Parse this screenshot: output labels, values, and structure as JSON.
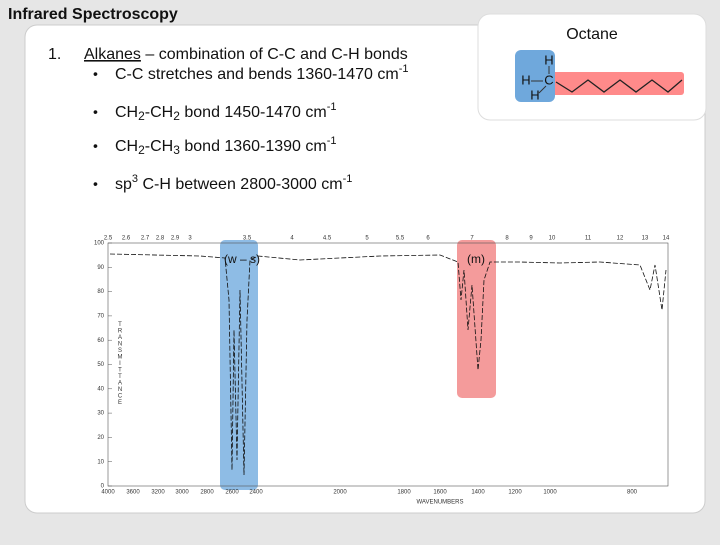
{
  "title": "Infrared Spectroscopy",
  "list": {
    "number": "1.",
    "heading": "Alkanes",
    "heading_rest": " – combination of C-C and C-H bonds",
    "bullets": [
      {
        "parts": [
          {
            "text": "C-C stretches and bends 1360-1470 cm"
          },
          {
            "text": "-1",
            "style": "sup"
          }
        ]
      },
      {
        "parts": [
          {
            "text": "CH"
          },
          {
            "text": "2",
            "style": "sub"
          },
          {
            "text": "-CH"
          },
          {
            "text": "2",
            "style": "sub"
          },
          {
            "text": " bond 1450-1470 cm"
          },
          {
            "text": "-1",
            "style": "sup"
          }
        ]
      },
      {
        "parts": [
          {
            "text": "CH"
          },
          {
            "text": "2",
            "style": "sub"
          },
          {
            "text": "-CH"
          },
          {
            "text": "3",
            "style": "sub"
          },
          {
            "text": " bond 1360-1390 cm"
          },
          {
            "text": "-1",
            "style": "sup"
          }
        ]
      },
      {
        "parts": [
          {
            "text": "sp"
          },
          {
            "text": "3",
            "style": "sup"
          },
          {
            "text": " C-H between 2800-3000 cm"
          },
          {
            "text": "-1",
            "style": "sup"
          }
        ]
      }
    ]
  },
  "molecule": {
    "title": "Octane",
    "atoms": [
      "H",
      "H",
      "C",
      "H"
    ]
  },
  "spectrum": {
    "top_ticks": [
      "2.5",
      "2.6",
      "2.7",
      "2.8",
      "2.9",
      "3",
      "3.5",
      "4",
      "4.5",
      "5",
      "5.5",
      "6",
      "7",
      "8",
      "9",
      "10",
      "11",
      "12",
      "13",
      "14"
    ],
    "y_ticks": [
      "100",
      "90",
      "80",
      "70",
      "60",
      "50",
      "40",
      "30",
      "20",
      "10",
      "0"
    ],
    "x_ticks": [
      "4000",
      "3600",
      "3200",
      "3000",
      "2800",
      "2600",
      "2400",
      "2000",
      "1800",
      "1600",
      "1400",
      "1200",
      "1000",
      "800"
    ],
    "y_label": "TRANSMITTANCE",
    "x_label": "WAVENUMBERS",
    "annotations": [
      "(w – s)",
      "(m)"
    ]
  }
}
